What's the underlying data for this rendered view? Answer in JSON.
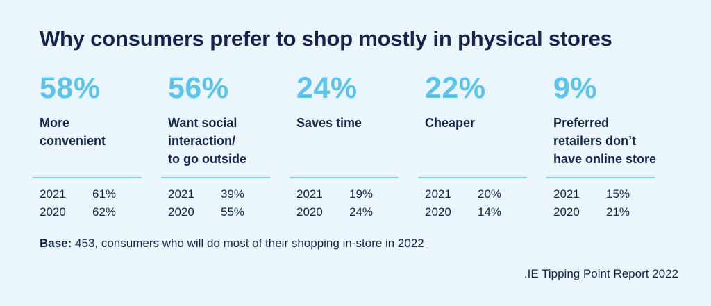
{
  "chart_data": {
    "type": "table",
    "title": "Why consumers prefer to shop mostly in physical stores",
    "items": [
      {
        "pct": "58%",
        "label": "More convenient",
        "label_lines": [
          "More",
          "convenient"
        ],
        "y2021": "61%",
        "y2020": "62%"
      },
      {
        "pct": "56%",
        "label": "Want social interaction/ to go outside",
        "label_lines": [
          "Want social",
          "interaction/",
          "to go outside"
        ],
        "y2021": "39%",
        "y2020": "55%"
      },
      {
        "pct": "24%",
        "label": "Saves time",
        "label_lines": [
          "Saves time"
        ],
        "y2021": "19%",
        "y2020": "24%"
      },
      {
        "pct": "22%",
        "label": "Cheaper",
        "label_lines": [
          "Cheaper"
        ],
        "y2021": "20%",
        "y2020": "14%"
      },
      {
        "pct": "9%",
        "label": "Preferred retailers don’t have online store",
        "label_lines": [
          "Preferred",
          "retailers don’t",
          "have online store"
        ],
        "y2021": "15%",
        "y2020": "21%"
      }
    ],
    "year_labels": [
      "2021",
      "2020"
    ]
  },
  "base": {
    "prefix": "Base:",
    "text": " 453, consumers who will do most of their shopping in-store in 2022"
  },
  "source": ".IE Tipping Point Report 2022",
  "colors": {
    "background": "#eaf6fc",
    "accent": "#5cc3ea",
    "text": "#14254a",
    "divider": "#7fd0ef"
  }
}
